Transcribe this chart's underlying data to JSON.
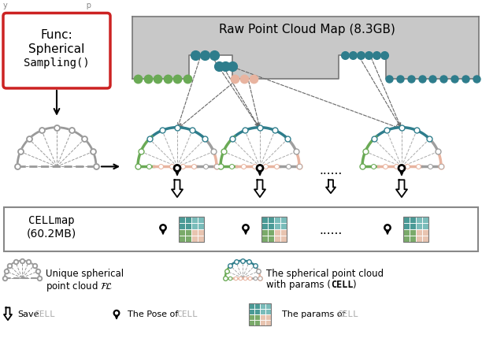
{
  "bg_color": "#ffffff",
  "gray_bg": "#c8c8c8",
  "color_green": "#6aaa55",
  "color_teal": "#2e7d8c",
  "color_teal_dark": "#1a5c6e",
  "color_pink": "#e8b4a0",
  "color_gray": "#9e9e9e",
  "color_gray_med": "#777777",
  "color_red": "#cc2222",
  "color_grid_teal": "#4a9a96",
  "color_grid_teal2": "#7abcba",
  "color_grid_green": "#7aaa6a",
  "color_grid_pink": "#e8c4b0",
  "func_text_lines": [
    "Func:",
    "Spherical",
    "Sampling()"
  ],
  "raw_map_text": "Raw Point Cloud Map (8.3GB)",
  "cellmap_line1": "CELLmap",
  "cellmap_line2": "(60.2MB)"
}
